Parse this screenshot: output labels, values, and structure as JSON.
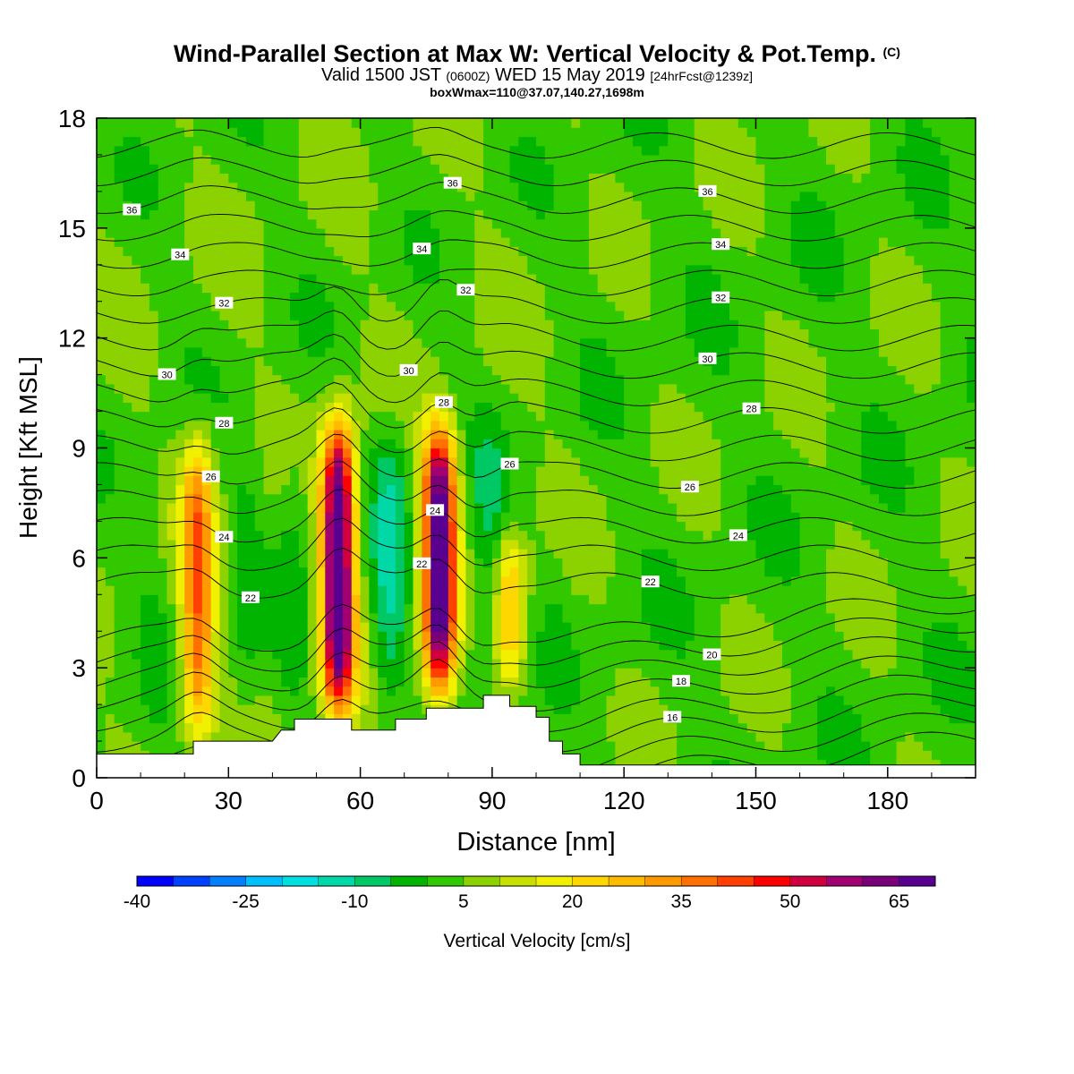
{
  "title": {
    "main": "Wind-Parallel Section at Max W: Vertical Velocity & Pot.Temp.",
    "copyright": "(C)",
    "valid_prefix": "Valid 1500 JST",
    "valid_utc": "(0600Z)",
    "valid_date": "WED 15 May 2019",
    "forecast": "[24hrFcst@1239z]",
    "box_info": "boxWmax=110@37.07,140.27,1698m"
  },
  "chart_data": {
    "type": "heatmap",
    "xlabel": "Distance [nm]",
    "ylabel": "Height [Kft MSL]",
    "xlim": [
      0,
      200
    ],
    "ylim": [
      0,
      18
    ],
    "x_ticks": [
      "0",
      "30",
      "60",
      "90",
      "120",
      "150",
      "180"
    ],
    "y_ticks": [
      "0",
      "3",
      "6",
      "9",
      "12",
      "15",
      "18"
    ],
    "colorbar": {
      "label": "Vertical Velocity [cm/s]",
      "tick_labels": [
        "-40",
        "-25",
        "-10",
        "5",
        "20",
        "35",
        "50",
        "65"
      ],
      "range": [
        -40,
        70
      ],
      "step": 5,
      "colors": [
        "#0000ff",
        "#0040ff",
        "#0080ff",
        "#00bfff",
        "#00e0e0",
        "#00d8a8",
        "#00c864",
        "#00b400",
        "#32c800",
        "#8cd200",
        "#c8e000",
        "#f0f000",
        "#ffd700",
        "#ffbb00",
        "#ff9900",
        "#ff7000",
        "#ff4000",
        "#ff0000",
        "#d00040",
        "#a00070",
        "#7a007a",
        "#5a0090"
      ]
    },
    "updrafts": [
      {
        "x": 23,
        "z_base": 0.8,
        "z_top": 9.5,
        "w_max": 35
      },
      {
        "x": 55,
        "z_base": 1.5,
        "z_top": 10.0,
        "w_max": 70
      },
      {
        "x": 78,
        "z_base": 2.0,
        "z_top": 9.8,
        "w_max": 70
      },
      {
        "x": 94,
        "z_base": 2.3,
        "z_top": 6.8,
        "w_max": 20
      }
    ],
    "theta_contours": [
      {
        "value": 16,
        "label": "16",
        "label_x": 131
      },
      {
        "value": 18,
        "label": "18",
        "label_x": 133
      },
      {
        "value": 20,
        "label": "20",
        "label_x": 140
      },
      {
        "value": 22,
        "label": "22",
        "label_x": 35
      },
      {
        "value": 22,
        "label": "22",
        "label_x": 74
      },
      {
        "value": 22,
        "label": "22",
        "label_x": 126
      },
      {
        "value": 24,
        "label": "24",
        "label_x": 29
      },
      {
        "value": 24,
        "label": "24",
        "label_x": 77
      },
      {
        "value": 24,
        "label": "24",
        "label_x": 146
      },
      {
        "value": 26,
        "label": "26",
        "label_x": 26
      },
      {
        "value": 26,
        "label": "26",
        "label_x": 94
      },
      {
        "value": 26,
        "label": "26",
        "label_x": 135
      },
      {
        "value": 28,
        "label": "28",
        "label_x": 29
      },
      {
        "value": 28,
        "label": "28",
        "label_x": 79
      },
      {
        "value": 28,
        "label": "28",
        "label_x": 149
      },
      {
        "value": 30,
        "label": "30",
        "label_x": 16
      },
      {
        "value": 30,
        "label": "30",
        "label_x": 71
      },
      {
        "value": 30,
        "label": "30",
        "label_x": 139
      },
      {
        "value": 32,
        "label": "32",
        "label_x": 29
      },
      {
        "value": 32,
        "label": "32",
        "label_x": 84
      },
      {
        "value": 32,
        "label": "32",
        "label_x": 142
      },
      {
        "value": 34,
        "label": "34",
        "label_x": 19
      },
      {
        "value": 34,
        "label": "34",
        "label_x": 74
      },
      {
        "value": 34,
        "label": "34",
        "label_x": 142
      },
      {
        "value": 36,
        "label": "36",
        "label_x": 8
      },
      {
        "value": 36,
        "label": "36",
        "label_x": 81
      },
      {
        "value": 36,
        "label": "36",
        "label_x": 139
      }
    ],
    "terrain": [
      [
        0,
        0.65
      ],
      [
        22,
        0.65
      ],
      [
        22,
        1.0
      ],
      [
        40,
        1.0
      ],
      [
        42,
        1.3
      ],
      [
        45,
        1.3
      ],
      [
        45,
        1.6
      ],
      [
        58,
        1.6
      ],
      [
        58,
        1.3
      ],
      [
        68,
        1.3
      ],
      [
        68,
        1.6
      ],
      [
        75,
        1.6
      ],
      [
        75,
        1.9
      ],
      [
        88,
        1.9
      ],
      [
        88,
        2.25
      ],
      [
        94,
        2.25
      ],
      [
        94,
        1.95
      ],
      [
        100,
        1.95
      ],
      [
        100,
        1.65
      ],
      [
        103,
        1.65
      ],
      [
        103,
        1.0
      ],
      [
        106,
        1.0
      ],
      [
        106,
        0.65
      ],
      [
        110,
        0.65
      ],
      [
        110,
        0.35
      ],
      [
        200,
        0.35
      ]
    ]
  }
}
